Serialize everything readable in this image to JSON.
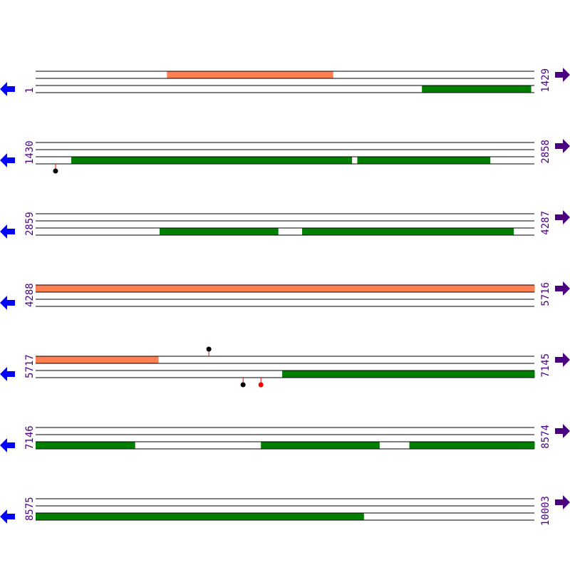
{
  "colors": {
    "forward": "#ff7f50",
    "reverse": "#008000",
    "left_arrow": "#0000ff",
    "right_arrow": "#4b0082",
    "label": "#4b0082",
    "marker_black": "#000000",
    "marker_red": "#ff0000",
    "stem": "#ff0000"
  },
  "rows": [
    {
      "start": "1",
      "end": "1429",
      "s": 1,
      "e": 1429,
      "features": [
        {
          "strand": "forward",
          "from": 377,
          "to": 852
        },
        {
          "strand": "reverse",
          "from": 1107,
          "to": 1419
        }
      ],
      "markers": []
    },
    {
      "start": "1430",
      "end": "2858",
      "s": 1430,
      "e": 2858,
      "features": [
        {
          "strand": "reverse",
          "from": 1532,
          "to": 2335
        },
        {
          "strand": "reverse",
          "from": 2351,
          "to": 2731
        }
      ],
      "markers": [
        {
          "pos": 1487,
          "side": "below",
          "color": "black"
        }
      ]
    },
    {
      "start": "2859",
      "end": "4287",
      "s": 2859,
      "e": 4287,
      "features": [
        {
          "strand": "reverse",
          "from": 3214,
          "to": 3553
        },
        {
          "strand": "reverse",
          "from": 3622,
          "to": 4227
        }
      ],
      "markers": []
    },
    {
      "start": "4288",
      "end": "5716",
      "s": 4288,
      "e": 5716,
      "features": [
        {
          "strand": "forward",
          "from": 4288,
          "to": 5716
        }
      ],
      "markers": []
    },
    {
      "start": "5717",
      "end": "7145",
      "s": 5717,
      "e": 7145,
      "features": [
        {
          "strand": "forward",
          "from": 5717,
          "to": 6068
        },
        {
          "strand": "reverse",
          "from": 6423,
          "to": 7145
        }
      ],
      "markers": [
        {
          "pos": 6213,
          "side": "above",
          "color": "black"
        },
        {
          "pos": 6311,
          "side": "below",
          "color": "black"
        },
        {
          "pos": 6362,
          "side": "below",
          "color": "red"
        }
      ]
    },
    {
      "start": "7146",
      "end": "8574",
      "s": 7146,
      "e": 8574,
      "features": [
        {
          "strand": "reverse",
          "from": 7146,
          "to": 7430
        },
        {
          "strand": "reverse",
          "from": 7791,
          "to": 8130
        },
        {
          "strand": "reverse",
          "from": 8216,
          "to": 8574
        }
      ],
      "markers": []
    },
    {
      "start": "8575",
      "end": "10003",
      "s": 8575,
      "e": 10003,
      "features": [
        {
          "strand": "reverse",
          "from": 8575,
          "to": 9514
        }
      ],
      "markers": []
    }
  ]
}
